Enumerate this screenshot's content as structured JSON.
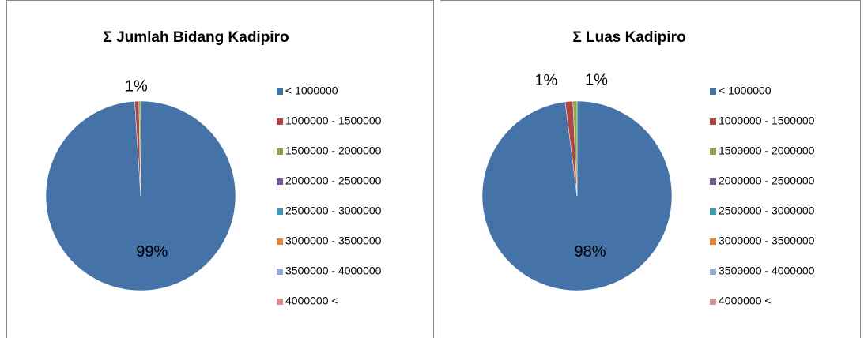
{
  "chart_data": [
    {
      "type": "pie",
      "title": "Σ Jumlah Bidang Kadipiro",
      "categories": [
        "< 1000000",
        "1000000 - 1500000",
        "1500000 - 2000000",
        "2000000 - 2500000",
        "2500000 - 3000000",
        "3000000 - 3500000",
        "3500000 - 4000000",
        "4000000 <"
      ],
      "values": [
        99,
        0.7,
        0.3,
        0,
        0,
        0,
        0,
        0
      ],
      "value_labels": [
        "99%",
        "1%",
        null,
        null,
        null,
        null,
        null,
        null
      ],
      "colors": [
        "#4572a7",
        "#aa4643",
        "#89a54e",
        "#71588f",
        "#4198af",
        "#db843d",
        "#93a9cf",
        "#d19392"
      ],
      "legend": "right"
    },
    {
      "type": "pie",
      "title": "Σ Luas Kadipiro",
      "categories": [
        "< 1000000",
        "1000000 - 1500000",
        "1500000 - 2000000",
        "2000000 - 2500000",
        "2500000 - 3000000",
        "3000000 - 3500000",
        "3500000 - 4000000",
        "4000000 <"
      ],
      "values": [
        98,
        1.3,
        0.7,
        0,
        0,
        0,
        0,
        0
      ],
      "value_labels": [
        "98%",
        "1%",
        "1%",
        null,
        null,
        null,
        null,
        null
      ],
      "colors": [
        "#4572a7",
        "#aa4643",
        "#89a54e",
        "#71588f",
        "#4198af",
        "#db843d",
        "#93a9cf",
        "#d19392"
      ],
      "legend": "right"
    }
  ]
}
